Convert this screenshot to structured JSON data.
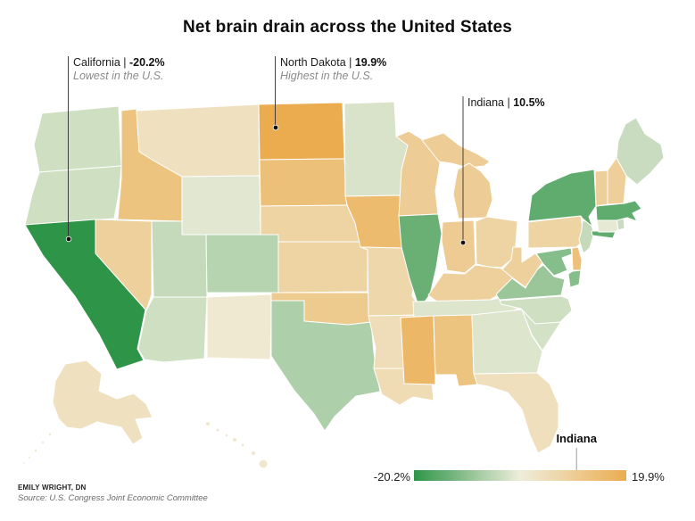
{
  "title": "Net brain drain across the United States",
  "annotations": [
    {
      "state": "California",
      "name_label": "California | ",
      "value_label": "-20.2%",
      "sublabel": "Lowest in the U.S."
    },
    {
      "state": "North Dakota",
      "name_label": "North Dakota | ",
      "value_label": "19.9%",
      "sublabel": "Highest in the U.S."
    },
    {
      "state": "Indiana",
      "name_label": "Indiana | ",
      "value_label": "10.5%",
      "sublabel": ""
    }
  ],
  "legend": {
    "min_label": "-20.2%",
    "max_label": "19.9%",
    "pointer_label": "Indiana",
    "pointer_value": 10.5
  },
  "credits": {
    "byline": "EMILY WRIGHT, DN",
    "source": "Source: U.S. Congress Joint Economic Committee"
  },
  "chart_data": {
    "type": "heatmap",
    "subtype": "us-state-choropleth",
    "title": "Net brain drain across the United States",
    "value_unit": "%",
    "color_scale": {
      "domain": [
        -20.2,
        0,
        19.9
      ],
      "colors": [
        "#2E9548",
        "#F0EEDC",
        "#EBAC4F"
      ]
    },
    "labeled_values": [
      {
        "state": "California",
        "value": -20.2,
        "note": "Lowest in the U.S."
      },
      {
        "state": "North Dakota",
        "value": 19.9,
        "note": "Highest in the U.S."
      },
      {
        "state": "Indiana",
        "value": 10.5
      }
    ],
    "states": [
      {
        "id": "AL",
        "name": "Alabama",
        "value": 13
      },
      {
        "id": "AK",
        "name": "Alaska",
        "value": 4
      },
      {
        "id": "AZ",
        "name": "Arizona",
        "value": -3.5
      },
      {
        "id": "AR",
        "name": "Arkansas",
        "value": 5
      },
      {
        "id": "CA",
        "name": "California",
        "value": -20.2
      },
      {
        "id": "CO",
        "name": "Colorado",
        "value": -6
      },
      {
        "id": "CT",
        "name": "Connecticut",
        "value": -1
      },
      {
        "id": "DE",
        "name": "Delaware",
        "value": 13.5
      },
      {
        "id": "FL",
        "name": "Florida",
        "value": 4.5
      },
      {
        "id": "GA",
        "name": "Georgia",
        "value": -2
      },
      {
        "id": "HI",
        "name": "Hawaii",
        "value": 2
      },
      {
        "id": "ID",
        "name": "Idaho",
        "value": 13
      },
      {
        "id": "IL",
        "name": "Illinois",
        "value": -14
      },
      {
        "id": "IN",
        "name": "Indiana",
        "value": 10.5
      },
      {
        "id": "IA",
        "name": "Iowa",
        "value": 15.5
      },
      {
        "id": "KS",
        "name": "Kansas",
        "value": 8
      },
      {
        "id": "KY",
        "name": "Kentucky",
        "value": 9
      },
      {
        "id": "LA",
        "name": "Louisiana",
        "value": 5.5
      },
      {
        "id": "ME",
        "name": "Maine",
        "value": -4
      },
      {
        "id": "MD",
        "name": "Maryland",
        "value": -11
      },
      {
        "id": "MA",
        "name": "Massachusetts",
        "value": -15
      },
      {
        "id": "MI",
        "name": "Michigan",
        "value": 10
      },
      {
        "id": "MN",
        "name": "Minnesota",
        "value": -2.5
      },
      {
        "id": "MS",
        "name": "Mississippi",
        "value": 16.5
      },
      {
        "id": "MO",
        "name": "Missouri",
        "value": 7
      },
      {
        "id": "MT",
        "name": "Montana",
        "value": 4
      },
      {
        "id": "NE",
        "name": "Nebraska",
        "value": 8
      },
      {
        "id": "NV",
        "name": "Nevada",
        "value": 9
      },
      {
        "id": "NH",
        "name": "New Hampshire",
        "value": 9.5
      },
      {
        "id": "NJ",
        "name": "New Jersey",
        "value": -4.5
      },
      {
        "id": "NM",
        "name": "New Mexico",
        "value": 1.5
      },
      {
        "id": "NY",
        "name": "New York",
        "value": -15
      },
      {
        "id": "NC",
        "name": "North Carolina",
        "value": -3.5
      },
      {
        "id": "ND",
        "name": "North Dakota",
        "value": 19.9
      },
      {
        "id": "OH",
        "name": "Ohio",
        "value": 8
      },
      {
        "id": "OK",
        "name": "Oklahoma",
        "value": 11
      },
      {
        "id": "OR",
        "name": "Oregon",
        "value": -3.5
      },
      {
        "id": "PA",
        "name": "Pennsylvania",
        "value": 8
      },
      {
        "id": "RI",
        "name": "Rhode Island",
        "value": -4
      },
      {
        "id": "SC",
        "name": "South Carolina",
        "value": -3
      },
      {
        "id": "SD",
        "name": "South Dakota",
        "value": 14
      },
      {
        "id": "TN",
        "name": "Tennessee",
        "value": -2
      },
      {
        "id": "TX",
        "name": "Texas",
        "value": -7
      },
      {
        "id": "UT",
        "name": "Utah",
        "value": -4.5
      },
      {
        "id": "VT",
        "name": "Vermont",
        "value": 9.5
      },
      {
        "id": "VA",
        "name": "Virginia",
        "value": -9
      },
      {
        "id": "WA",
        "name": "Washington",
        "value": -3.5
      },
      {
        "id": "WV",
        "name": "West Virginia",
        "value": 9
      },
      {
        "id": "WY",
        "name": "Wyoming",
        "value": -1.5
      },
      {
        "id": "WI",
        "name": "Wisconsin",
        "value": 10
      }
    ]
  }
}
